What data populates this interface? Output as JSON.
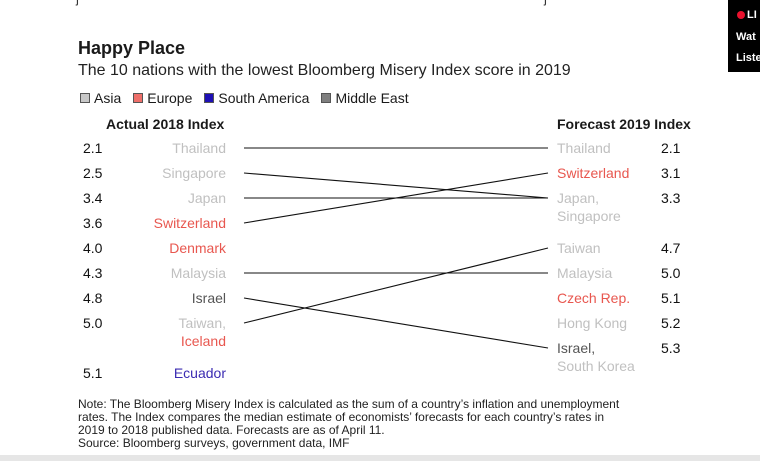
{
  "title": "Happy Place",
  "subtitle": "The 10 nations with the lowest Bloomberg Misery Index score in 2019",
  "legend": [
    {
      "label": "Asia",
      "color": "#c8c8c8"
    },
    {
      "label": "Europe",
      "color": "#ee6f6a"
    },
    {
      "label": "South America",
      "color": "#1e10b5"
    },
    {
      "label": "Middle East",
      "color": "#7f7f7f"
    }
  ],
  "colors": {
    "Asia": "#c0c0c0",
    "Europe": "#e8574f",
    "South America": "#3b2cb2",
    "Middle East": "#555555"
  },
  "headers": {
    "left": "Actual 2018 Index",
    "right": "Forecast 2019 Index"
  },
  "chart_data": {
    "type": "slope",
    "title": "Happy Place",
    "subtitle": "The 10 nations with the lowest Bloomberg Misery Index score in 2019",
    "left": [
      {
        "value": "2.1",
        "names": [
          {
            "name": "Thailand",
            "region": "Asia"
          }
        ]
      },
      {
        "value": "2.5",
        "names": [
          {
            "name": "Singapore",
            "region": "Asia"
          }
        ]
      },
      {
        "value": "3.4",
        "names": [
          {
            "name": "Japan",
            "region": "Asia"
          }
        ]
      },
      {
        "value": "3.6",
        "names": [
          {
            "name": "Switzerland",
            "region": "Europe"
          }
        ]
      },
      {
        "value": "4.0",
        "names": [
          {
            "name": "Denmark",
            "region": "Europe"
          }
        ]
      },
      {
        "value": "4.3",
        "names": [
          {
            "name": "Malaysia",
            "region": "Asia"
          }
        ]
      },
      {
        "value": "4.8",
        "names": [
          {
            "name": "Israel",
            "region": "Middle East"
          }
        ]
      },
      {
        "value": "5.0",
        "names": [
          {
            "name": "Taiwan,",
            "region": "Asia"
          },
          {
            "name": "Iceland",
            "region": "Europe"
          }
        ]
      },
      {
        "value": "5.1",
        "names": [
          {
            "name": "Ecuador",
            "region": "South America"
          }
        ]
      }
    ],
    "right": [
      {
        "value": "2.1",
        "names": [
          {
            "name": "Thailand",
            "region": "Asia"
          }
        ]
      },
      {
        "value": "3.1",
        "names": [
          {
            "name": "Switzerland",
            "region": "Europe"
          }
        ]
      },
      {
        "value": "3.3",
        "names": [
          {
            "name": "Japan,",
            "region": "Asia"
          },
          {
            "name": "Singapore",
            "region": "Asia"
          }
        ]
      },
      {
        "value": "4.7",
        "names": [
          {
            "name": "Taiwan",
            "region": "Asia"
          }
        ]
      },
      {
        "value": "5.0",
        "names": [
          {
            "name": "Malaysia",
            "region": "Asia"
          }
        ]
      },
      {
        "value": "5.1",
        "names": [
          {
            "name": "Czech Rep.",
            "region": "Europe"
          }
        ]
      },
      {
        "value": "5.2",
        "names": [
          {
            "name": "Hong Kong",
            "region": "Asia"
          }
        ]
      },
      {
        "value": "5.3",
        "names": [
          {
            "name": "Israel,",
            "region": "Middle East"
          },
          {
            "name": "South Korea",
            "region": "Asia"
          }
        ]
      }
    ],
    "connections": [
      {
        "country": "Thailand",
        "from": 2.1,
        "to": 2.1
      },
      {
        "country": "Singapore",
        "from": 2.5,
        "to": 3.3
      },
      {
        "country": "Japan",
        "from": 3.4,
        "to": 3.3
      },
      {
        "country": "Switzerland",
        "from": 3.6,
        "to": 3.1
      },
      {
        "country": "Malaysia",
        "from": 4.3,
        "to": 5.0
      },
      {
        "country": "Israel",
        "from": 4.8,
        "to": 5.3
      },
      {
        "country": "Taiwan",
        "from": 5.0,
        "to": 4.7
      }
    ]
  },
  "note": {
    "line1": "Note: The Bloomberg Misery Index is calculated as the sum of a country’s inflation and unemployment",
    "line2": "rates. The Index compares the median estimate of economists’ forecasts for each country’s rates in",
    "line3": "2019 to 2018 published data. Forecasts are as of April 11.",
    "line4": "Source: Bloomberg surveys, government data, IMF"
  },
  "side_panel": {
    "line1": "LI",
    "line2": "Wat",
    "line3": "Liste"
  },
  "top_fragments": {
    "left": "j",
    "right": "j"
  }
}
